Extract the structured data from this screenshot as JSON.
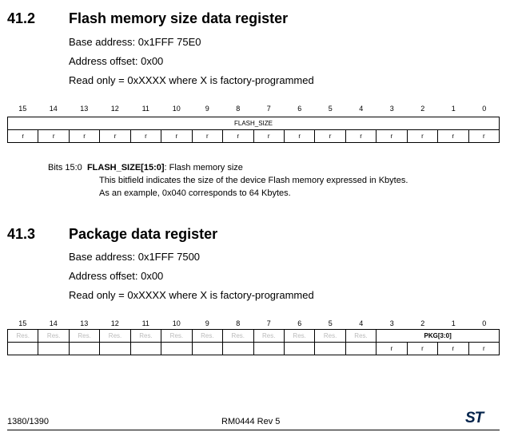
{
  "sec1": {
    "num": "41.2",
    "title": "Flash memory size data register",
    "base": "Base address: 0x1FFF 75E0",
    "offset": "Address offset: 0x00",
    "ro": "Read only = 0xXXXX where X is factory-programmed",
    "bits": [
      "15",
      "14",
      "13",
      "12",
      "11",
      "10",
      "9",
      "8",
      "7",
      "6",
      "5",
      "4",
      "3",
      "2",
      "1",
      "0"
    ],
    "field": "FLASH_SIZE",
    "access": "r",
    "desc_bits": "Bits 15:0",
    "desc_field": "FLASH_SIZE[15:0]",
    "desc_short": ": Flash memory size",
    "desc_line1": "This bitfield indicates the size of the device Flash memory expressed in Kbytes.",
    "desc_line2": "As an example, 0x040 corresponds to 64 Kbytes."
  },
  "sec2": {
    "num": "41.3",
    "title": "Package data register",
    "base": "Base address: 0x1FFF 7500",
    "offset": "Address offset: 0x00",
    "ro": "Read only = 0xXXXX where X is factory-programmed",
    "reserved": "Res.",
    "field": "PKG[3:0]",
    "access": "r"
  },
  "footer": {
    "page": "1380/1390",
    "doc": "RM0444 Rev 5",
    "logo": "ST"
  }
}
